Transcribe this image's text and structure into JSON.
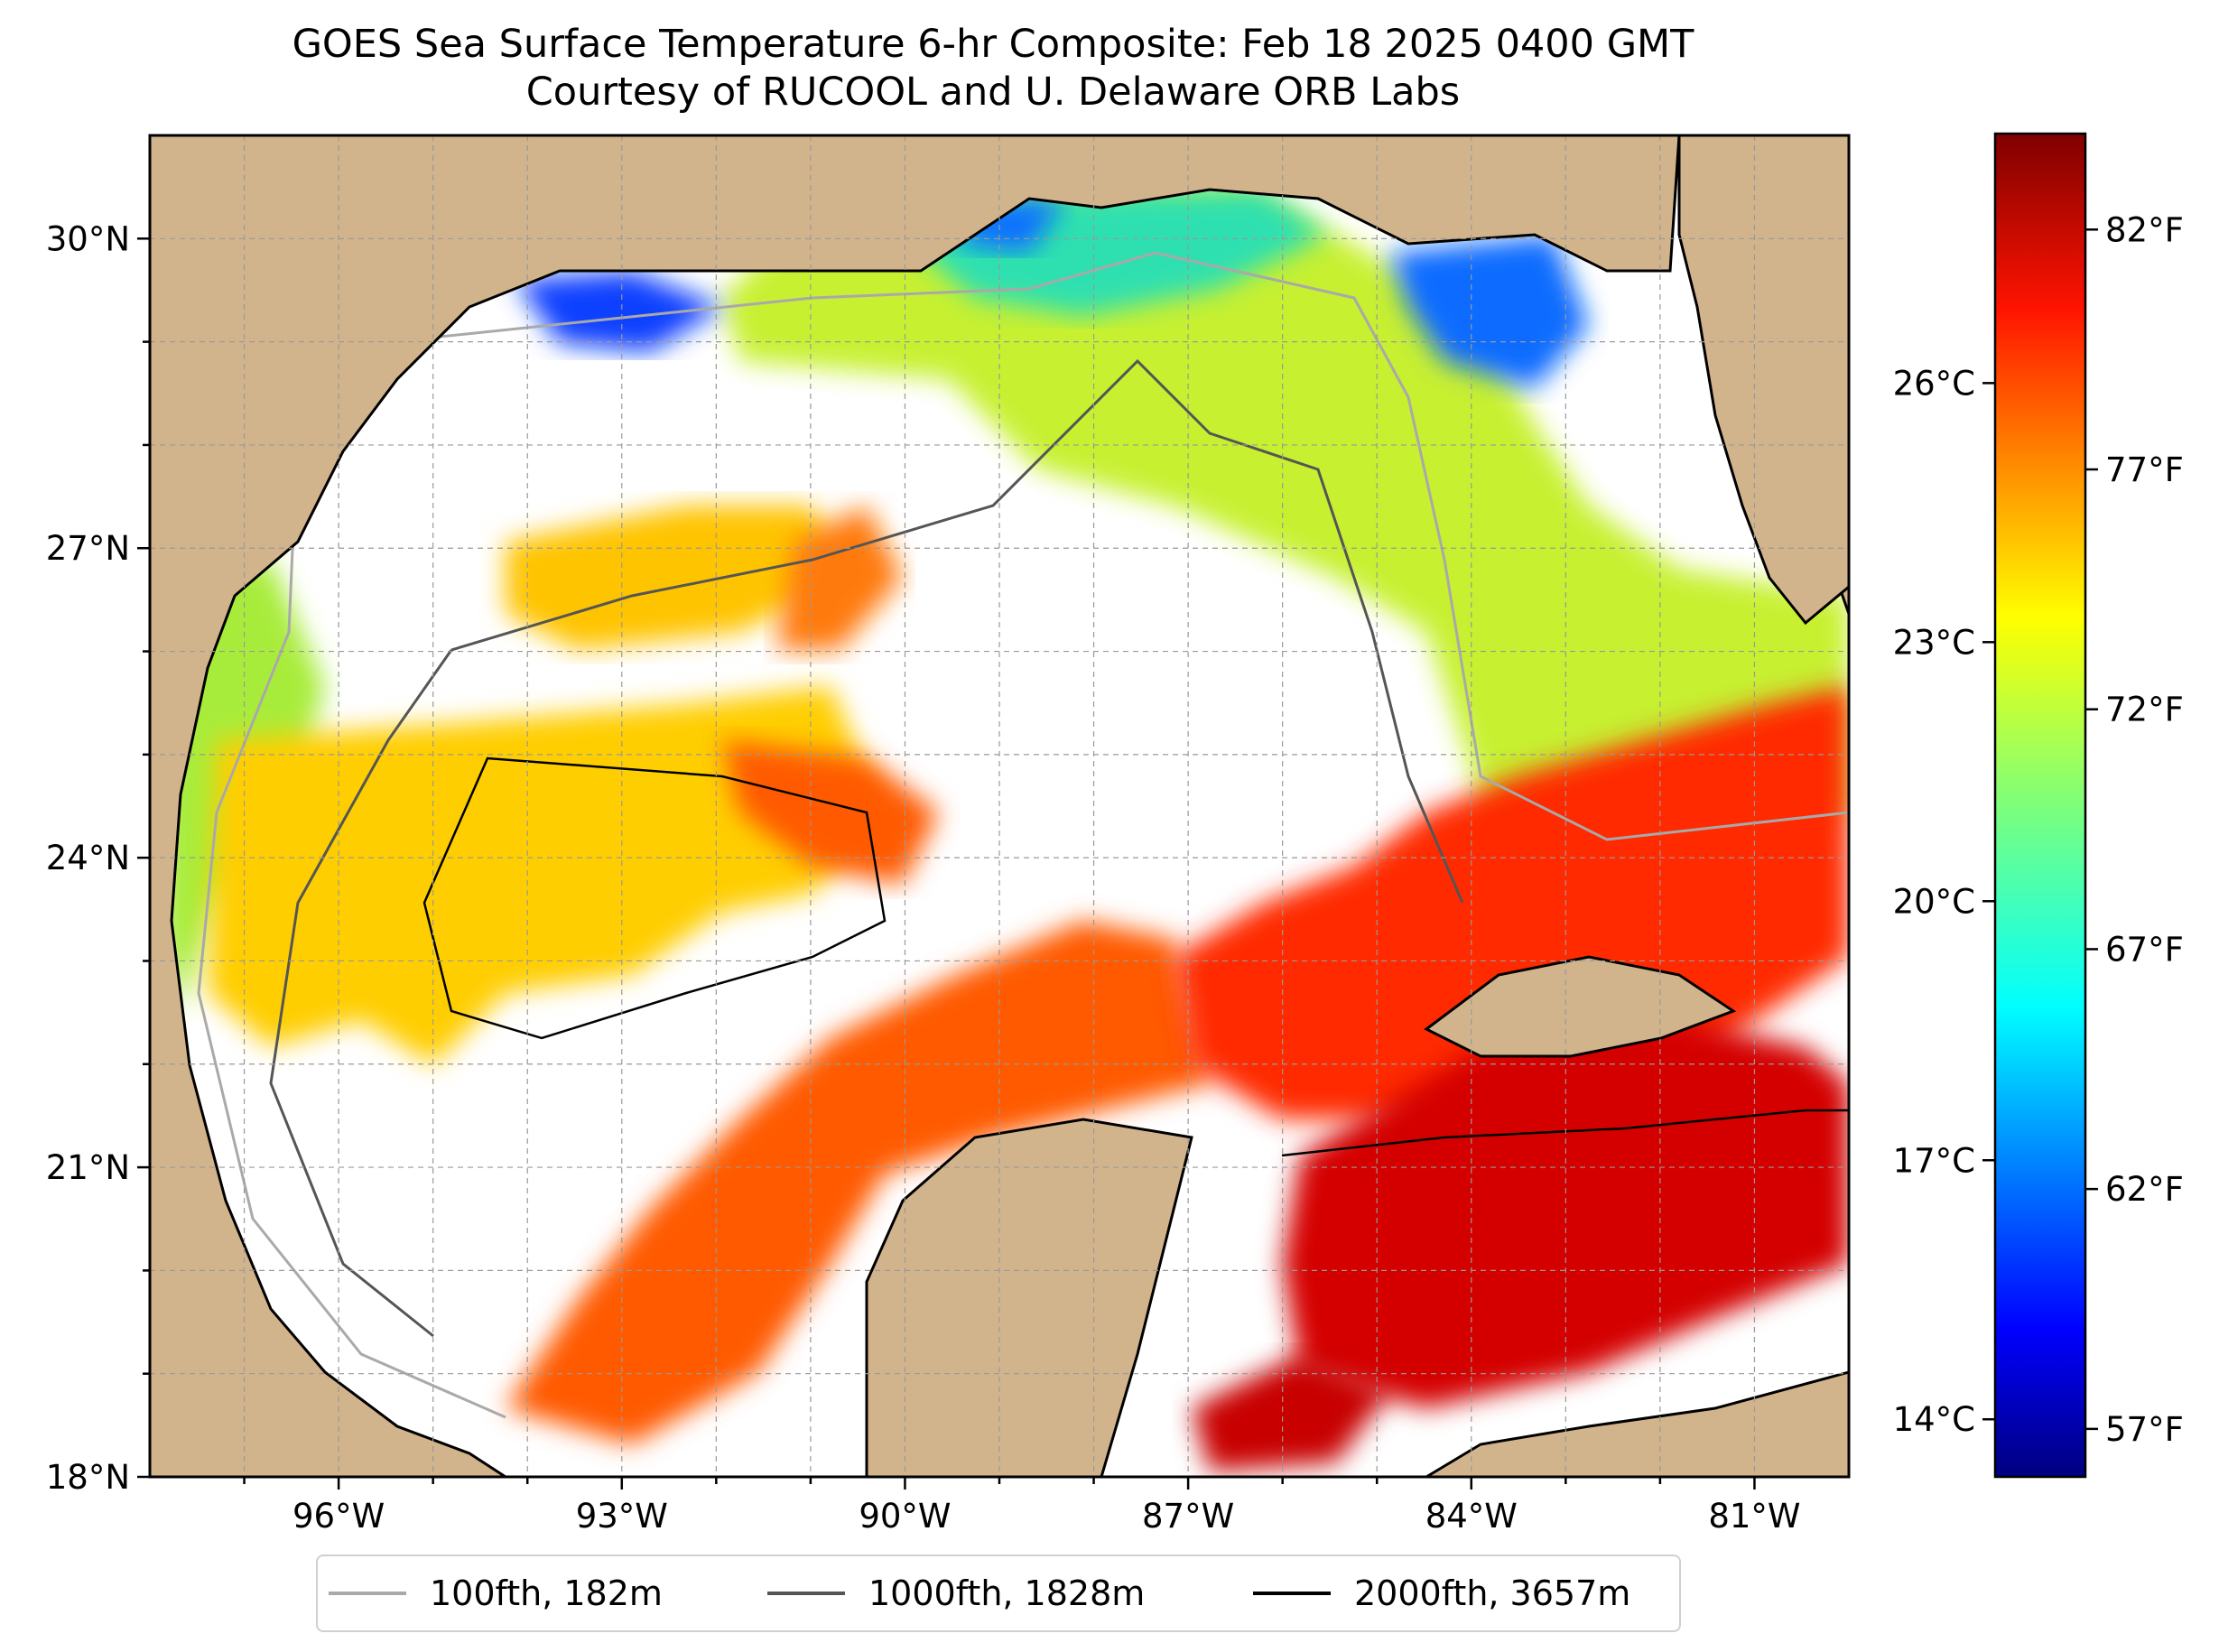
{
  "title": "GOES Sea Surface Temperature 6-hr Composite: Feb 18 2025 0400 GMT",
  "subtitle": "Courtesy of RUCOOL and U. Delaware ORB Labs",
  "map": {
    "lon_range": [
      -98,
      -80
    ],
    "lat_range": [
      18,
      31
    ],
    "longitude_ticks": [
      {
        "value": -96,
        "label": "96°W"
      },
      {
        "value": -93,
        "label": "93°W"
      },
      {
        "value": -90,
        "label": "90°W"
      },
      {
        "value": -87,
        "label": "87°W"
      },
      {
        "value": -84,
        "label": "84°W"
      },
      {
        "value": -81,
        "label": "81°W"
      }
    ],
    "latitude_ticks": [
      {
        "value": 30,
        "label": "30°N"
      },
      {
        "value": 27,
        "label": "27°N"
      },
      {
        "value": 24,
        "label": "24°N"
      },
      {
        "value": 21,
        "label": "21°N"
      },
      {
        "value": 18,
        "label": "18°N"
      }
    ],
    "land_color": "#d2b48c",
    "no_data_color": "#ffffff",
    "grid": true
  },
  "colorbar": {
    "colormap": "jet",
    "celsius_ticks": [
      {
        "value": 26,
        "label": "26°C"
      },
      {
        "value": 23,
        "label": "23°C"
      },
      {
        "value": 20,
        "label": "20°C"
      },
      {
        "value": 17,
        "label": "17°C"
      },
      {
        "value": 14,
        "label": "14°C"
      }
    ],
    "fahrenheit_ticks": [
      {
        "value": 82,
        "label": "82°F"
      },
      {
        "value": 77,
        "label": "77°F"
      },
      {
        "value": 72,
        "label": "72°F"
      },
      {
        "value": 67,
        "label": "67°F"
      },
      {
        "value": 62,
        "label": "62°F"
      },
      {
        "value": 57,
        "label": "57°F"
      }
    ],
    "range_f": [
      56,
      84
    ]
  },
  "legend": [
    {
      "label": "100fth, 182m",
      "color": "#a9a9a9"
    },
    {
      "label": "1000fth, 1828m",
      "color": "#555555"
    },
    {
      "label": "2000fth, 3657m",
      "color": "#000000"
    }
  ]
}
